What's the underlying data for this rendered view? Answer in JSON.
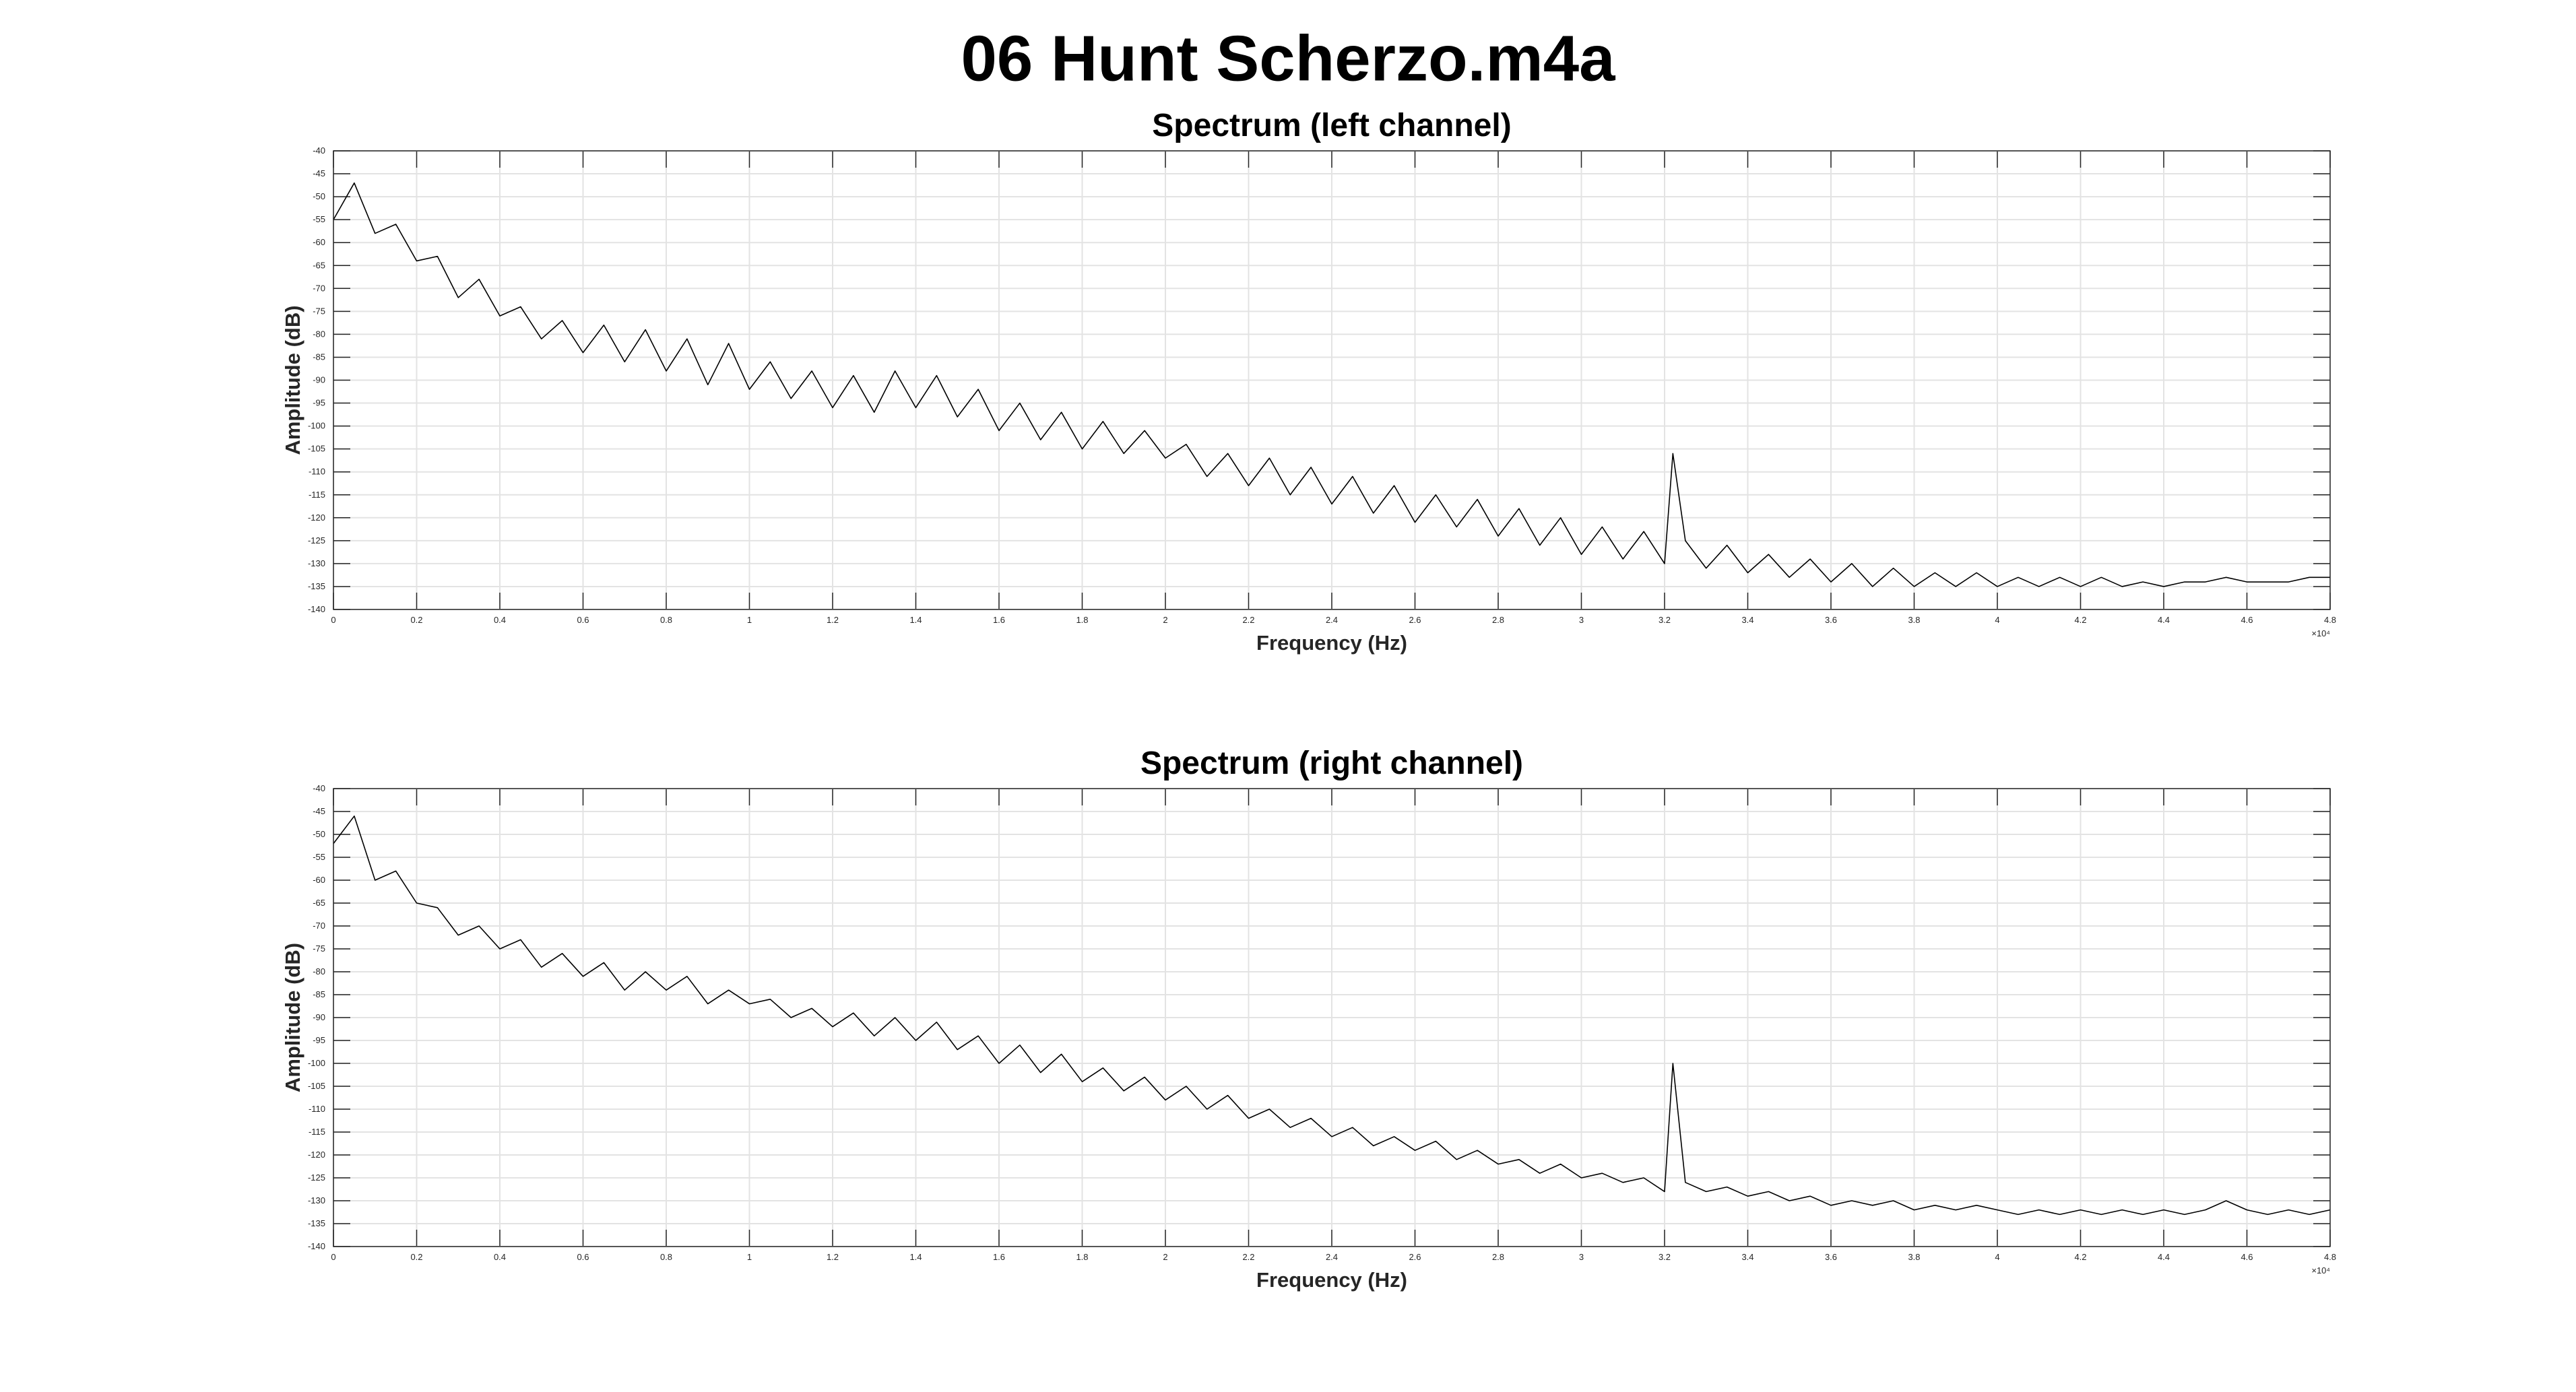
{
  "title": "06 Hunt Scherzo.m4a",
  "chart_data": [
    {
      "type": "line",
      "title": "Spectrum (left channel)",
      "x_label": "Frequency (Hz)",
      "y_label": "Amplitude (dB)",
      "x_exponent_label": "×10⁴",
      "color": "#000000",
      "grid": true,
      "xlim": [
        0,
        4.8
      ],
      "xticks": [
        0,
        0.2,
        0.4,
        0.6,
        0.8,
        1,
        1.2,
        1.4,
        1.6,
        1.8,
        2,
        2.2,
        2.4,
        2.6,
        2.8,
        3,
        3.2,
        3.4,
        3.6,
        3.8,
        4,
        4.2,
        4.4,
        4.6,
        4.8
      ],
      "ylim": [
        -140,
        -40
      ],
      "yticks": [
        -140,
        -135,
        -130,
        -125,
        -120,
        -115,
        -110,
        -105,
        -100,
        -95,
        -90,
        -85,
        -80,
        -75,
        -70,
        -65,
        -60,
        -55,
        -50,
        -45,
        -40
      ],
      "x": [
        0,
        0.05,
        0.1,
        0.15,
        0.2,
        0.25,
        0.3,
        0.35,
        0.4,
        0.45,
        0.5,
        0.55,
        0.6,
        0.65,
        0.7,
        0.75,
        0.8,
        0.85,
        0.9,
        0.95,
        1.0,
        1.05,
        1.1,
        1.15,
        1.2,
        1.25,
        1.3,
        1.35,
        1.4,
        1.45,
        1.5,
        1.55,
        1.6,
        1.65,
        1.7,
        1.75,
        1.8,
        1.85,
        1.9,
        1.95,
        2.0,
        2.05,
        2.1,
        2.15,
        2.2,
        2.25,
        2.3,
        2.35,
        2.4,
        2.45,
        2.5,
        2.55,
        2.6,
        2.65,
        2.7,
        2.75,
        2.8,
        2.85,
        2.9,
        2.95,
        3.0,
        3.05,
        3.1,
        3.15,
        3.2,
        3.22,
        3.25,
        3.3,
        3.35,
        3.4,
        3.45,
        3.5,
        3.55,
        3.6,
        3.65,
        3.7,
        3.75,
        3.8,
        3.85,
        3.9,
        3.95,
        4.0,
        4.05,
        4.1,
        4.15,
        4.2,
        4.25,
        4.3,
        4.35,
        4.4,
        4.45,
        4.5,
        4.55,
        4.6,
        4.65,
        4.7,
        4.75,
        4.8
      ],
      "values": [
        -55,
        -47,
        -58,
        -56,
        -64,
        -63,
        -72,
        -68,
        -76,
        -74,
        -81,
        -77,
        -84,
        -78,
        -86,
        -79,
        -88,
        -81,
        -91,
        -82,
        -92,
        -86,
        -94,
        -88,
        -96,
        -89,
        -97,
        -88,
        -96,
        -89,
        -98,
        -92,
        -101,
        -95,
        -103,
        -97,
        -105,
        -99,
        -106,
        -101,
        -107,
        -104,
        -111,
        -106,
        -113,
        -107,
        -115,
        -109,
        -117,
        -111,
        -119,
        -113,
        -121,
        -115,
        -122,
        -116,
        -124,
        -118,
        -126,
        -120,
        -128,
        -122,
        -129,
        -123,
        -130,
        -106,
        -125,
        -131,
        -126,
        -132,
        -128,
        -133,
        -129,
        -134,
        -130,
        -135,
        -131,
        -135,
        -132,
        -135,
        -132,
        -135,
        -133,
        -135,
        -133,
        -135,
        -133,
        -135,
        -134,
        -135,
        -134,
        -134,
        -133,
        -134,
        -134,
        -134,
        -133,
        -133
      ]
    },
    {
      "type": "line",
      "title": "Spectrum (right channel)",
      "x_label": "Frequency (Hz)",
      "y_label": "Amplitude (dB)",
      "x_exponent_label": "×10⁴",
      "color": "#000000",
      "grid": true,
      "xlim": [
        0,
        4.8
      ],
      "xticks": [
        0,
        0.2,
        0.4,
        0.6,
        0.8,
        1,
        1.2,
        1.4,
        1.6,
        1.8,
        2,
        2.2,
        2.4,
        2.6,
        2.8,
        3,
        3.2,
        3.4,
        3.6,
        3.8,
        4,
        4.2,
        4.4,
        4.6,
        4.8
      ],
      "ylim": [
        -140,
        -40
      ],
      "yticks": [
        -140,
        -135,
        -130,
        -125,
        -120,
        -115,
        -110,
        -105,
        -100,
        -95,
        -90,
        -85,
        -80,
        -75,
        -70,
        -65,
        -60,
        -55,
        -50,
        -45,
        -40
      ],
      "x": [
        0,
        0.05,
        0.1,
        0.15,
        0.2,
        0.25,
        0.3,
        0.35,
        0.4,
        0.45,
        0.5,
        0.55,
        0.6,
        0.65,
        0.7,
        0.75,
        0.8,
        0.85,
        0.9,
        0.95,
        1.0,
        1.05,
        1.1,
        1.15,
        1.2,
        1.25,
        1.3,
        1.35,
        1.4,
        1.45,
        1.5,
        1.55,
        1.6,
        1.65,
        1.7,
        1.75,
        1.8,
        1.85,
        1.9,
        1.95,
        2.0,
        2.05,
        2.1,
        2.15,
        2.2,
        2.25,
        2.3,
        2.35,
        2.4,
        2.45,
        2.5,
        2.55,
        2.6,
        2.65,
        2.7,
        2.75,
        2.8,
        2.85,
        2.9,
        2.95,
        3.0,
        3.05,
        3.1,
        3.15,
        3.2,
        3.22,
        3.25,
        3.3,
        3.35,
        3.4,
        3.45,
        3.5,
        3.55,
        3.6,
        3.65,
        3.7,
        3.75,
        3.8,
        3.85,
        3.9,
        3.95,
        4.0,
        4.05,
        4.1,
        4.15,
        4.2,
        4.25,
        4.3,
        4.35,
        4.4,
        4.45,
        4.5,
        4.55,
        4.6,
        4.65,
        4.7,
        4.75,
        4.8
      ],
      "values": [
        -52,
        -46,
        -60,
        -58,
        -65,
        -66,
        -72,
        -70,
        -75,
        -73,
        -79,
        -76,
        -81,
        -78,
        -84,
        -80,
        -84,
        -81,
        -87,
        -84,
        -87,
        -86,
        -90,
        -88,
        -92,
        -89,
        -94,
        -90,
        -95,
        -91,
        -97,
        -94,
        -100,
        -96,
        -102,
        -98,
        -104,
        -101,
        -106,
        -103,
        -108,
        -105,
        -110,
        -107,
        -112,
        -110,
        -114,
        -112,
        -116,
        -114,
        -118,
        -116,
        -119,
        -117,
        -121,
        -119,
        -122,
        -121,
        -124,
        -122,
        -125,
        -124,
        -126,
        -125,
        -128,
        -100,
        -126,
        -128,
        -127,
        -129,
        -128,
        -130,
        -129,
        -131,
        -130,
        -131,
        -130,
        -132,
        -131,
        -132,
        -131,
        -132,
        -133,
        -132,
        -133,
        -132,
        -133,
        -132,
        -133,
        -132,
        -133,
        -132,
        -130,
        -132,
        -133,
        -132,
        -133,
        -132
      ]
    }
  ]
}
